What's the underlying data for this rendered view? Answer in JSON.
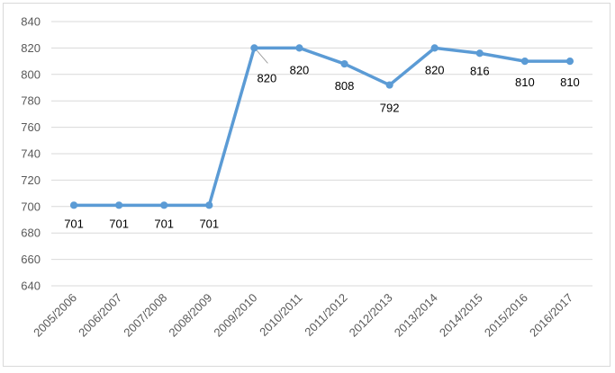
{
  "chart_data": {
    "type": "line",
    "title": "",
    "xlabel": "",
    "ylabel": "",
    "categories": [
      "2005/2006",
      "2006/2007",
      "2007/2008",
      "2008/2009",
      "2009/2010",
      "2010/2011",
      "2011/2012",
      "2012/2013",
      "2013/2014",
      "2014/2015",
      "2015/2016",
      "2016/2017"
    ],
    "series": [
      {
        "values": [
          701,
          701,
          701,
          701,
          820,
          820,
          808,
          792,
          820,
          816,
          810,
          810
        ]
      }
    ],
    "data_labels": [
      "701",
      "701",
      "701",
      "701",
      "820",
      "820",
      "808",
      "792",
      "820",
      "816",
      "810",
      "810"
    ],
    "ylim": [
      640,
      840
    ],
    "yticks": [
      640,
      660,
      680,
      700,
      720,
      740,
      760,
      780,
      800,
      820,
      840
    ],
    "grid": true,
    "legend": "none",
    "colors": {
      "line": "#5b9bd5",
      "grid": "#d9d9d9",
      "tick_text": "#595959",
      "label_text": "#000000"
    }
  }
}
